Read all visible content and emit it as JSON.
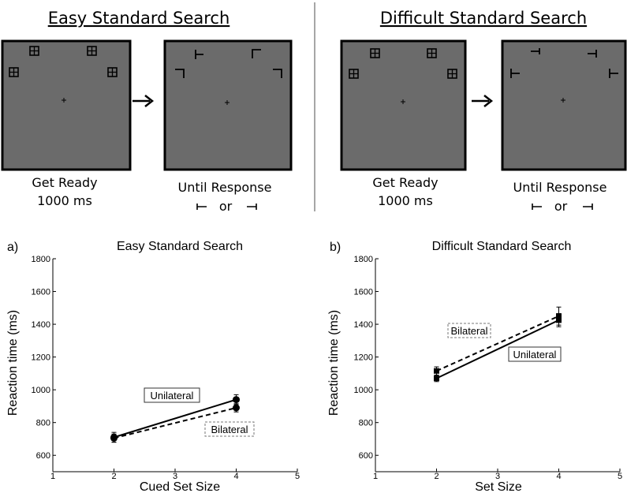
{
  "schematics": [
    {
      "title": "Easy Standard Search",
      "screen1_caption_line1": "Get Ready",
      "screen1_caption_line2": "1000 ms",
      "screen2_caption_line1": "Until Response",
      "screen2_caption_or": "or",
      "item_icon": "boxed-plus-icon",
      "target_icon": "corner-L-icon",
      "screen_color": "#6b6b6b"
    },
    {
      "title": "Difficult Standard Search",
      "screen1_caption_line1": "Get Ready",
      "screen1_caption_line2": "1000 ms",
      "screen2_caption_line1": "Until Response",
      "screen2_caption_or": "or",
      "item_icon": "boxed-plus-icon",
      "target_icon": "T-bar-icon",
      "screen_color": "#6b6b6b"
    }
  ],
  "chart_data": [
    {
      "type": "line",
      "panel_label": "a)",
      "title": "Easy Standard Search",
      "xlabel": "Cued Set Size",
      "ylabel": "Reaction time (ms)",
      "xlim": [
        1,
        5
      ],
      "ylim": [
        500,
        1800
      ],
      "xticks": [
        1,
        2,
        3,
        4,
        5
      ],
      "yticks": [
        600,
        800,
        1000,
        1200,
        1400,
        1600,
        1800
      ],
      "grid": false,
      "series": [
        {
          "name": "Unilateral",
          "style": "solid",
          "x": [
            2,
            4
          ],
          "y": [
            710,
            940
          ],
          "err": [
            30,
            30
          ]
        },
        {
          "name": "Bilateral",
          "style": "dashed",
          "x": [
            2,
            4
          ],
          "y": [
            705,
            890
          ],
          "err": [
            25,
            25
          ]
        }
      ]
    },
    {
      "type": "line",
      "panel_label": "b)",
      "title": "Difficult Standard Search",
      "xlabel": "Set Size",
      "ylabel": "Reaction time (ms)",
      "xlim": [
        1,
        5
      ],
      "ylim": [
        500,
        1800
      ],
      "xticks": [
        1,
        2,
        3,
        4,
        5
      ],
      "yticks": [
        600,
        800,
        1000,
        1200,
        1400,
        1600,
        1800
      ],
      "grid": false,
      "series": [
        {
          "name": "Unilateral",
          "style": "solid",
          "x": [
            2,
            4
          ],
          "y": [
            1070,
            1425
          ],
          "err": [
            20,
            40
          ]
        },
        {
          "name": "Bilateral",
          "style": "dashed",
          "x": [
            2,
            4
          ],
          "y": [
            1115,
            1450
          ],
          "err": [
            25,
            55
          ]
        }
      ]
    }
  ]
}
